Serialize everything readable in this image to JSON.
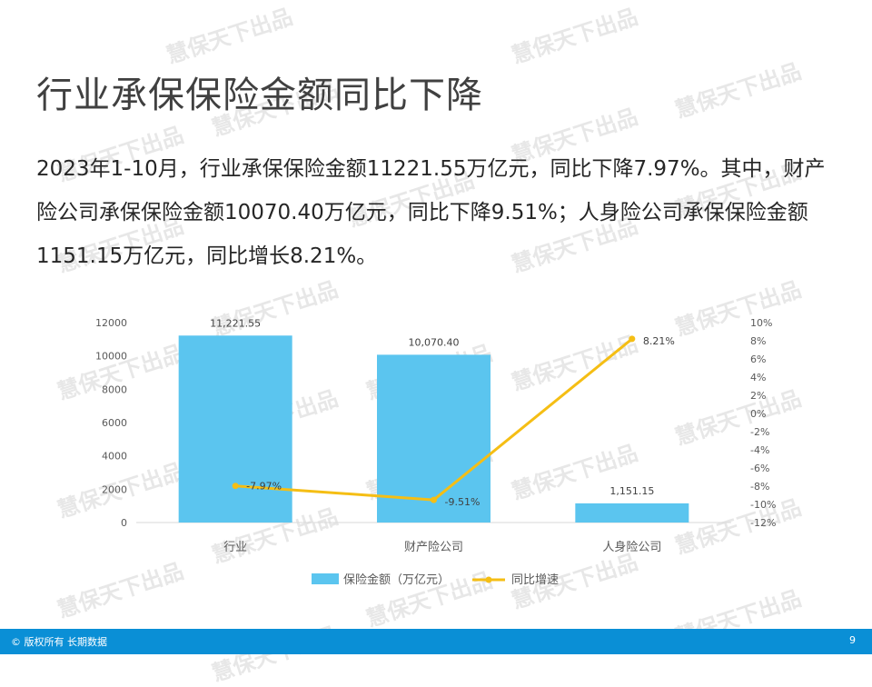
{
  "slide": {
    "title": "行业承保保险金额同比下降",
    "paragraph": "2023年1-10月，行业承保保险金额11221.55万亿元，同比下降7.97%。其中，财产险公司承保保险金额10070.40万亿元，同比下降9.51%；人身险公司承保保险金额1151.15万亿元，同比增长8.21%。",
    "watermark": "慧保天下出品"
  },
  "footer": {
    "copyright": "© 版权所有 长期数据",
    "page_number": "9",
    "background": "#0a8fd6"
  },
  "chart_data": {
    "type": "bar",
    "categories": [
      "行业",
      "财产险公司",
      "人身险公司"
    ],
    "series": [
      {
        "name": "保险金额（万亿元）",
        "type": "bar",
        "axis": "left",
        "color": "#5bc5ef",
        "values": [
          11221.55,
          10070.4,
          1151.15
        ],
        "labels": [
          "11,221.55",
          "10,070.40",
          "1,151.15"
        ]
      },
      {
        "name": "同比增速",
        "type": "line",
        "axis": "right",
        "color": "#f5be14",
        "values": [
          -7.97,
          -9.51,
          8.21
        ],
        "labels": [
          "-7.97%",
          "-9.51%",
          "8.21%"
        ]
      }
    ],
    "y_left": {
      "ylim": [
        0,
        12000
      ],
      "ticks": [
        0,
        2000,
        4000,
        6000,
        8000,
        10000,
        12000
      ],
      "tick_labels": [
        "0",
        "2000",
        "4000",
        "6000",
        "8000",
        "10000",
        "12000"
      ]
    },
    "y_right": {
      "ylim": [
        -12,
        10
      ],
      "ticks": [
        10,
        8,
        6,
        4,
        2,
        0,
        -2,
        -4,
        -6,
        -8,
        -10,
        -12
      ],
      "tick_labels": [
        "10%",
        "8%",
        "6%",
        "4%",
        "2%",
        "0%",
        "-2%",
        "-4%",
        "-6%",
        "-8%",
        "-10%",
        "-12%"
      ]
    },
    "grid": false,
    "legend_position": "bottom"
  }
}
